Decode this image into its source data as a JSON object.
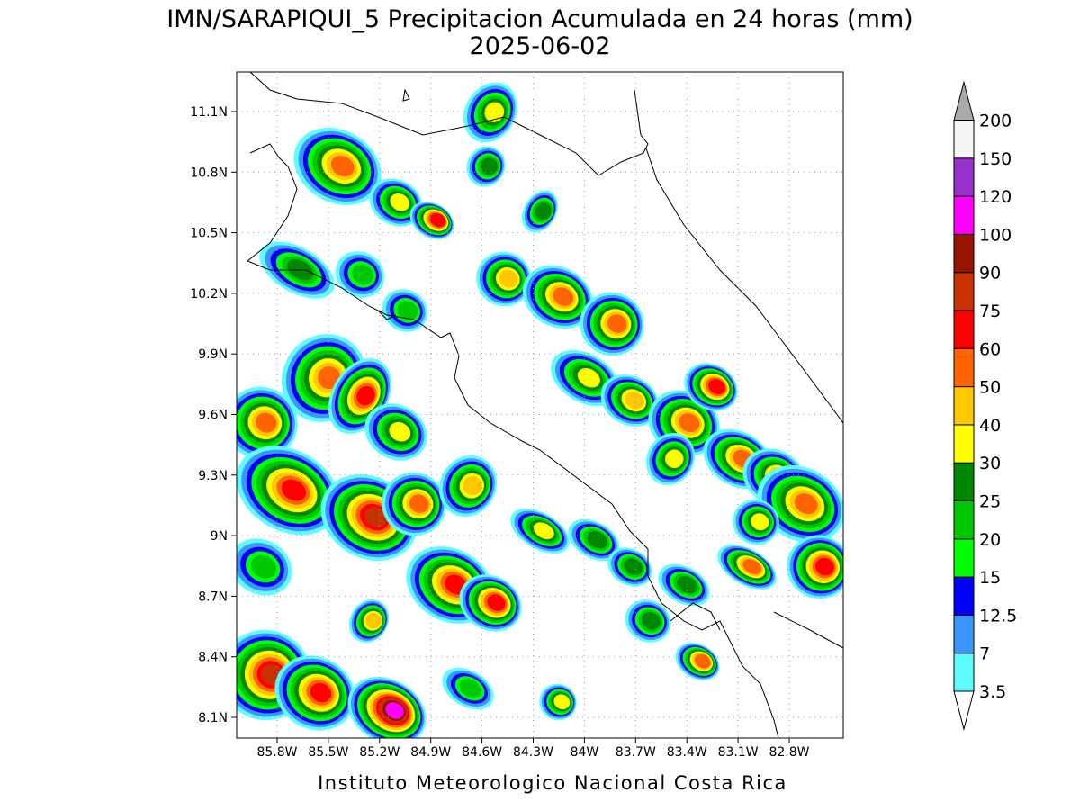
{
  "title": "IMN/SARAPIQUI_5 Precipitacion Acumulada en 24 horas (mm)",
  "date": "2025-06-02",
  "lat_labels": [
    "11.1N",
    "10.8N",
    "10.5N",
    "10.2N",
    "9.9N",
    "9.6N",
    "9.3N",
    "9N",
    "8.7N",
    "8.4N",
    "8.1N"
  ],
  "lon_labels": [
    "85.8W",
    "85.5W",
    "85.2W",
    "84.9W",
    "84.6W",
    "84.3W",
    "84W",
    "83.7W",
    "83.4W",
    "83.1W",
    "82.8W"
  ],
  "colorbar": {
    "labels": [
      "3.5",
      "7",
      "12.5",
      "15",
      "20",
      "25",
      "30",
      "40",
      "50",
      "60",
      "75",
      "90",
      "100",
      "120",
      "150",
      "200"
    ],
    "colors": [
      "#5ffcff",
      "#3c96ff",
      "#0000ff",
      "#00ff00",
      "#00c800",
      "#008800",
      "#ffff00",
      "#ffc800",
      "#ff6400",
      "#ff0000",
      "#c83200",
      "#961400",
      "#ff00ff",
      "#9932cc",
      "#f5f5f5"
    ],
    "under_color": "#ffffff",
    "over_color": "#aaaaaa"
  },
  "footer": "Instituto Meteorologico Nacional Costa Rica"
}
